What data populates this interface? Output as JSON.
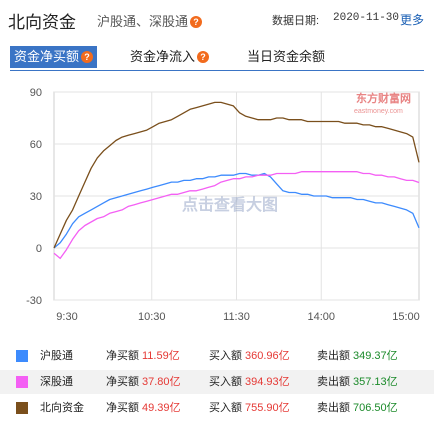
{
  "header": {
    "title": "北向资金",
    "subtitle": "沪股通、深股通",
    "date_label": "数据日期:",
    "date_value": "2020-11-30",
    "more_label": "更多"
  },
  "tabs": [
    {
      "label": "资金净买额",
      "active": true
    },
    {
      "label": "资金净流入",
      "active": false
    },
    {
      "label": "当日资金余额",
      "active": false
    }
  ],
  "watermark": {
    "brand": "东方财富网",
    "domain": "eastmoney.com",
    "center_text": "点击查看大图"
  },
  "chart_data": {
    "type": "line",
    "title": "",
    "xlabel": "",
    "ylabel": "",
    "x_ticks": [
      "9:30",
      "10:30",
      "11:30",
      "14:00",
      "15:00"
    ],
    "y_ticks": [
      90,
      60,
      30,
      0,
      -30
    ],
    "ylim": [
      -30,
      90
    ],
    "grid": true,
    "series": [
      {
        "name": "沪股通",
        "color": "#3d8bfd",
        "values": [
          0,
          3,
          8,
          14,
          18,
          20,
          22,
          24,
          26,
          28,
          29,
          30,
          31,
          32,
          33,
          34,
          35,
          36,
          37,
          38,
          38,
          39,
          39,
          40,
          40,
          41,
          41,
          42,
          42,
          42,
          43,
          43,
          42,
          42,
          43,
          41,
          37,
          33,
          32,
          32,
          31,
          31,
          30,
          30,
          30,
          29,
          29,
          29,
          29,
          28,
          28,
          27,
          26,
          26,
          25,
          24,
          23,
          22,
          20,
          11.59
        ]
      },
      {
        "name": "深股通",
        "color": "#f45ff4",
        "values": [
          -3,
          -6,
          -1,
          5,
          10,
          13,
          15,
          17,
          18,
          20,
          21,
          22,
          24,
          25,
          26,
          27,
          28,
          29,
          30,
          31,
          31,
          32,
          33,
          33,
          34,
          35,
          36,
          38,
          39,
          40,
          40,
          41,
          41,
          42,
          42,
          42,
          43,
          43,
          43,
          43,
          44,
          44,
          44,
          44,
          44,
          44,
          44,
          44,
          44,
          44,
          43,
          43,
          42,
          42,
          41,
          41,
          40,
          39,
          39,
          37.8
        ]
      },
      {
        "name": "北向资金",
        "color": "#7a4f1c",
        "values": [
          0,
          8,
          16,
          22,
          30,
          38,
          46,
          52,
          56,
          59,
          62,
          64,
          65,
          66,
          67,
          68,
          70,
          72,
          73,
          74,
          76,
          78,
          80,
          81,
          82,
          83,
          84,
          84,
          83,
          82,
          78,
          76,
          75,
          74,
          74,
          74,
          75,
          75,
          74,
          74,
          74,
          73,
          73,
          73,
          73,
          73,
          73,
          72,
          72,
          72,
          71,
          71,
          70,
          70,
          69,
          68,
          67,
          66,
          64,
          49.39
        ]
      }
    ]
  },
  "legend": [
    {
      "name": "沪股通",
      "color": "#3d8bfd",
      "net_label": "净买额",
      "net": "11.59亿",
      "buy_label": "买入额",
      "buy": "360.96亿",
      "sell_label": "卖出额",
      "sell": "349.37亿"
    },
    {
      "name": "深股通",
      "color": "#f45ff4",
      "net_label": "净买额",
      "net": "37.80亿",
      "buy_label": "买入额",
      "buy": "394.93亿",
      "sell_label": "卖出额",
      "sell": "357.13亿"
    },
    {
      "name": "北向资金",
      "color": "#7a4f1c",
      "net_label": "净买额",
      "net": "49.39亿",
      "buy_label": "买入额",
      "buy": "755.90亿",
      "sell_label": "卖出额",
      "sell": "706.50亿"
    }
  ]
}
